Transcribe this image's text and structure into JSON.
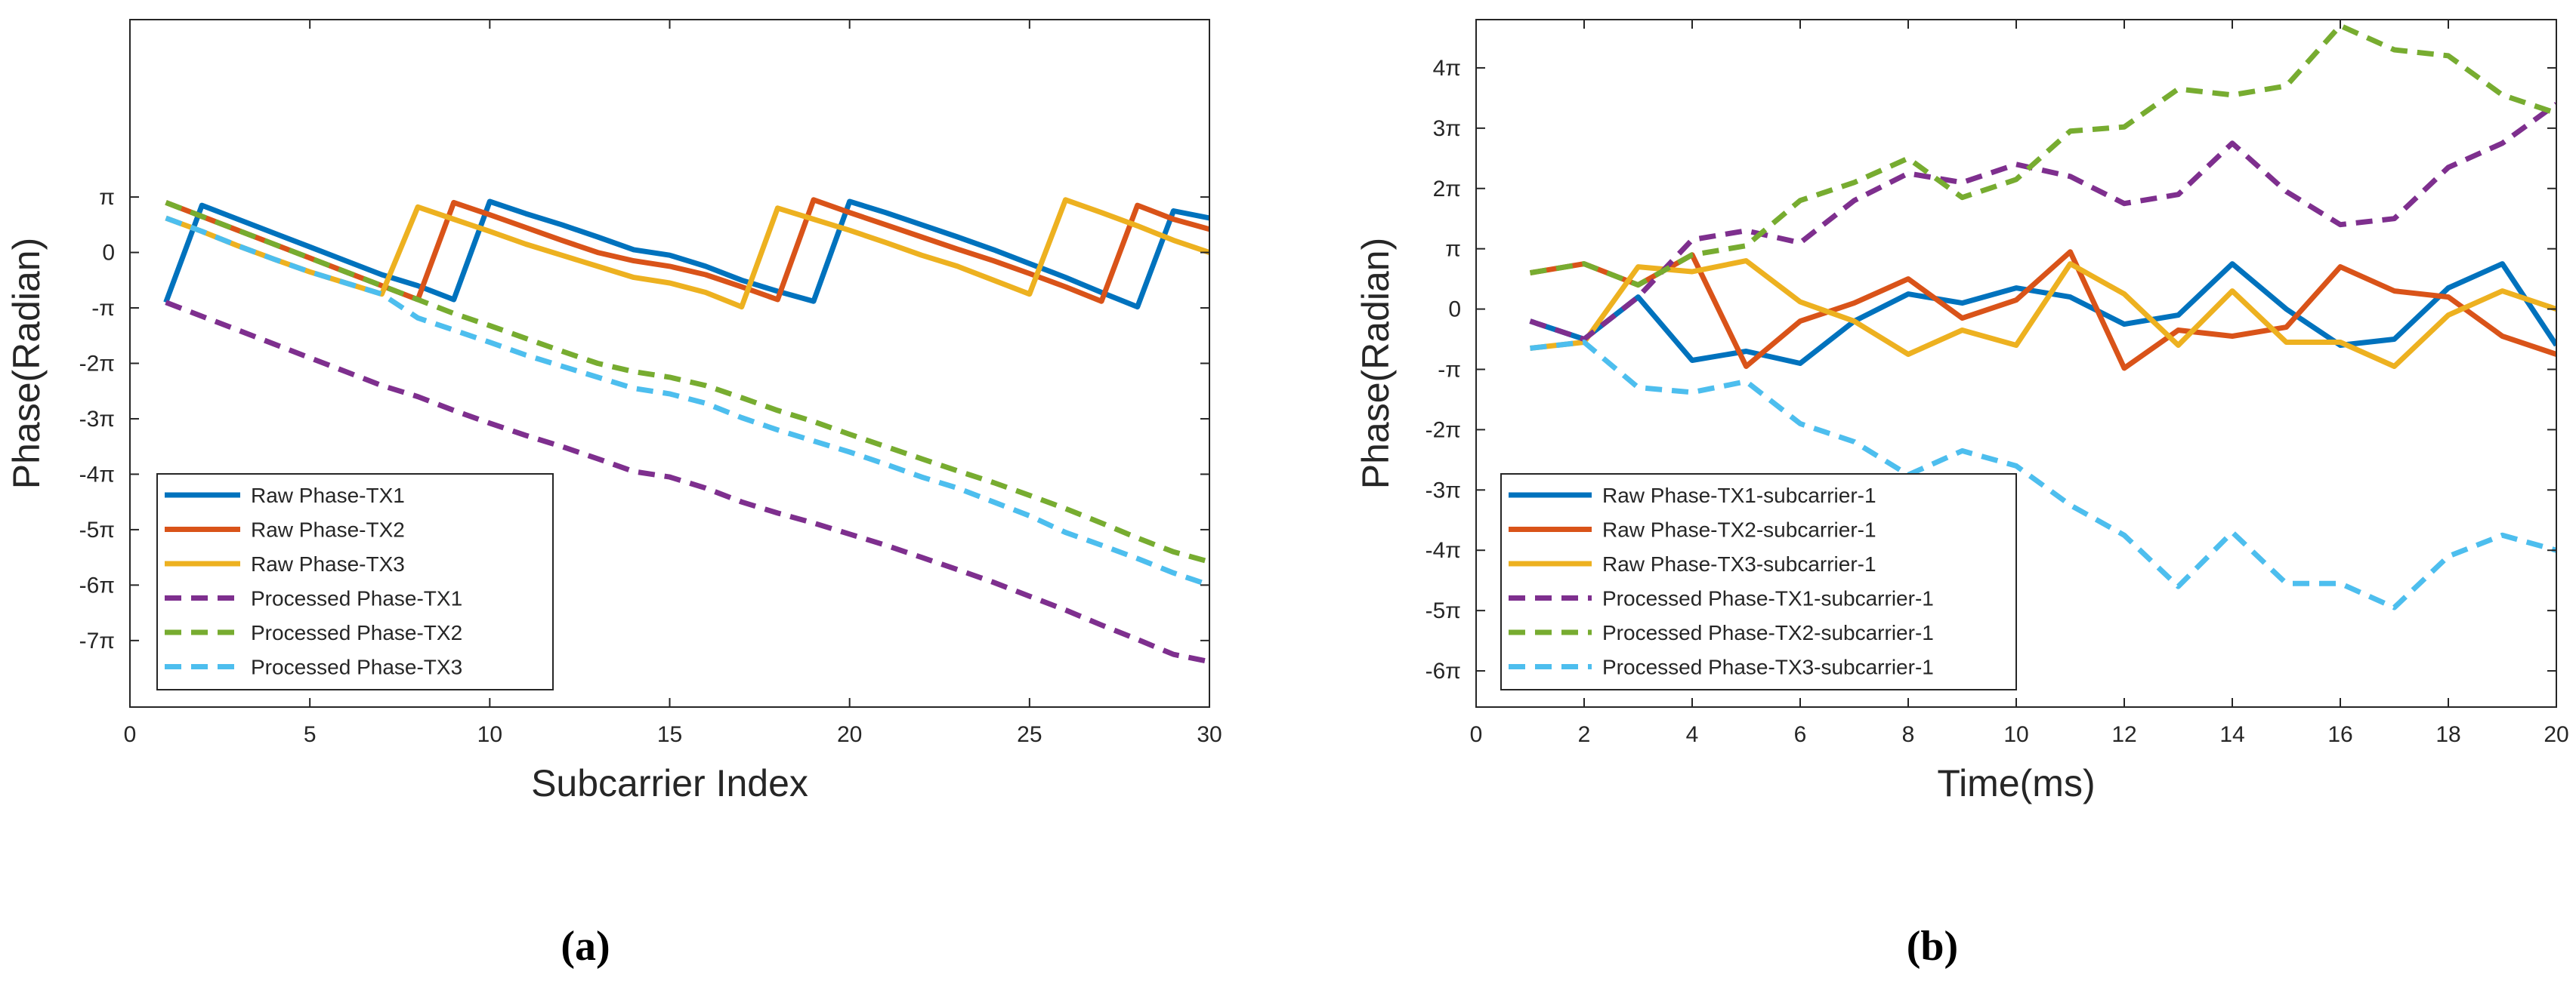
{
  "chart_data": [
    {
      "type": "line",
      "caption": "(a)",
      "xlabel": "Subcarrier Index",
      "ylabel": "Phase(Radian)",
      "xlim": [
        0,
        30
      ],
      "ylim": [
        -8.2,
        4.2
      ],
      "xticks": [
        0,
        5,
        10,
        15,
        20,
        25,
        30
      ],
      "xtick_labels": [
        "0",
        "5",
        "10",
        "15",
        "20",
        "25",
        "30"
      ],
      "yticks": [
        -7,
        -6,
        -5,
        -4,
        -3,
        -2,
        -1,
        0,
        1
      ],
      "ytick_labels": [
        "-7π",
        "-6π",
        "-5π",
        "-4π",
        "-3π",
        "-2π",
        "-π",
        "0",
        "π"
      ],
      "y_units": "multiples of π",
      "legend_position": "bottom-left",
      "series": [
        {
          "name": "Raw Phase-TX1",
          "color": "#0072BD",
          "dash": "solid",
          "x": [
            1,
            2,
            3,
            4,
            5,
            6,
            7,
            8,
            9,
            10,
            11,
            12,
            13,
            14,
            15,
            16,
            17,
            18,
            19,
            20,
            21,
            22,
            23,
            24,
            25,
            26,
            27,
            28,
            29,
            30
          ],
          "y": [
            -0.9,
            0.85,
            0.6,
            0.35,
            0.1,
            -0.15,
            -0.4,
            -0.6,
            -0.85,
            0.92,
            0.7,
            0.5,
            0.28,
            0.05,
            -0.05,
            -0.25,
            -0.5,
            -0.7,
            -0.88,
            0.92,
            0.72,
            0.5,
            0.28,
            0.05,
            -0.2,
            -0.45,
            -0.72,
            -0.98,
            0.75,
            0.62
          ]
        },
        {
          "name": "Raw Phase-TX2",
          "color": "#D95319",
          "dash": "solid",
          "x": [
            1,
            2,
            3,
            4,
            5,
            6,
            7,
            8,
            9,
            10,
            11,
            12,
            13,
            14,
            15,
            16,
            17,
            18,
            19,
            20,
            21,
            22,
            23,
            24,
            25,
            26,
            27,
            28,
            29,
            30
          ],
          "y": [
            0.9,
            0.65,
            0.4,
            0.15,
            -0.1,
            -0.35,
            -0.6,
            -0.85,
            0.9,
            0.68,
            0.45,
            0.22,
            0.0,
            -0.15,
            -0.25,
            -0.4,
            -0.62,
            -0.85,
            0.95,
            0.72,
            0.5,
            0.28,
            0.06,
            -0.15,
            -0.38,
            -0.62,
            -0.88,
            0.85,
            0.6,
            0.42
          ]
        },
        {
          "name": "Raw Phase-TX3",
          "color": "#EDB120",
          "dash": "solid",
          "x": [
            1,
            2,
            3,
            4,
            5,
            6,
            7,
            8,
            9,
            10,
            11,
            12,
            13,
            14,
            15,
            16,
            17,
            18,
            19,
            20,
            21,
            22,
            23,
            24,
            25,
            26,
            27,
            28,
            29,
            30
          ],
          "y": [
            0.62,
            0.38,
            0.12,
            -0.12,
            -0.35,
            -0.55,
            -0.75,
            0.82,
            0.6,
            0.38,
            0.15,
            -0.05,
            -0.25,
            -0.45,
            -0.55,
            -0.72,
            -0.98,
            0.8,
            0.6,
            0.4,
            0.18,
            -0.05,
            -0.25,
            -0.5,
            -0.75,
            0.95,
            0.72,
            0.48,
            0.22,
            0.0
          ]
        },
        {
          "name": "Processed Phase-TX1",
          "color": "#7E2F8E",
          "dash": "dashed",
          "x": [
            1,
            2,
            3,
            4,
            5,
            6,
            7,
            8,
            9,
            10,
            11,
            12,
            13,
            14,
            15,
            16,
            17,
            18,
            19,
            20,
            21,
            22,
            23,
            24,
            25,
            26,
            27,
            28,
            29,
            30
          ],
          "y": [
            -0.9,
            -1.15,
            -1.4,
            -1.65,
            -1.9,
            -2.15,
            -2.4,
            -2.6,
            -2.85,
            -3.08,
            -3.3,
            -3.5,
            -3.72,
            -3.95,
            -4.05,
            -4.25,
            -4.5,
            -4.7,
            -4.88,
            -5.08,
            -5.28,
            -5.5,
            -5.72,
            -5.95,
            -6.2,
            -6.45,
            -6.72,
            -6.98,
            -7.25,
            -7.38
          ]
        },
        {
          "name": "Processed Phase-TX2",
          "color": "#77AC30",
          "dash": "dashed",
          "x": [
            1,
            2,
            3,
            4,
            5,
            6,
            7,
            8,
            9,
            10,
            11,
            12,
            13,
            14,
            15,
            16,
            17,
            18,
            19,
            20,
            21,
            22,
            23,
            24,
            25,
            26,
            27,
            28,
            29,
            30
          ],
          "y": [
            0.9,
            0.65,
            0.4,
            0.15,
            -0.1,
            -0.35,
            -0.6,
            -0.85,
            -1.1,
            -1.32,
            -1.55,
            -1.78,
            -2.0,
            -2.15,
            -2.25,
            -2.4,
            -2.62,
            -2.85,
            -3.05,
            -3.28,
            -3.5,
            -3.72,
            -3.94,
            -4.15,
            -4.38,
            -4.62,
            -4.88,
            -5.15,
            -5.4,
            -5.58
          ]
        },
        {
          "name": "Processed Phase-TX3",
          "color": "#4DBEEE",
          "dash": "dashed",
          "x": [
            1,
            2,
            3,
            4,
            5,
            6,
            7,
            8,
            9,
            10,
            11,
            12,
            13,
            14,
            15,
            16,
            17,
            18,
            19,
            20,
            21,
            22,
            23,
            24,
            25,
            26,
            27,
            28,
            29,
            30
          ],
          "y": [
            0.62,
            0.38,
            0.12,
            -0.12,
            -0.35,
            -0.55,
            -0.75,
            -1.18,
            -1.4,
            -1.62,
            -1.85,
            -2.05,
            -2.25,
            -2.45,
            -2.55,
            -2.72,
            -2.98,
            -3.2,
            -3.4,
            -3.6,
            -3.82,
            -4.05,
            -4.25,
            -4.5,
            -4.75,
            -5.05,
            -5.28,
            -5.52,
            -5.78,
            -6.0
          ]
        }
      ]
    },
    {
      "type": "line",
      "caption": "(b)",
      "xlabel": "Time(ms)",
      "ylabel": "Phase(Radian)",
      "xlim": [
        0,
        20
      ],
      "ylim": [
        -6.6,
        4.8
      ],
      "xticks": [
        0,
        2,
        4,
        6,
        8,
        10,
        12,
        14,
        16,
        18,
        20
      ],
      "xtick_labels": [
        "0",
        "2",
        "4",
        "6",
        "8",
        "10",
        "12",
        "14",
        "16",
        "18",
        "20"
      ],
      "yticks": [
        -6,
        -5,
        -4,
        -3,
        -2,
        -1,
        0,
        1,
        2,
        3,
        4
      ],
      "ytick_labels": [
        "-6π",
        "-5π",
        "-4π",
        "-3π",
        "-2π",
        "-π",
        "0",
        "π",
        "2π",
        "3π",
        "4π"
      ],
      "y_units": "multiples of π",
      "legend_position": "bottom-left",
      "series": [
        {
          "name": "Raw Phase-TX1-subcarrier-1",
          "color": "#0072BD",
          "dash": "solid",
          "x": [
            1,
            2,
            3,
            4,
            5,
            6,
            7,
            8,
            9,
            10,
            11,
            12,
            13,
            14,
            15,
            16,
            17,
            18,
            19,
            20
          ],
          "y": [
            -0.2,
            -0.5,
            0.2,
            -0.85,
            -0.7,
            -0.9,
            -0.2,
            0.25,
            0.1,
            0.35,
            0.2,
            -0.25,
            -0.1,
            0.75,
            0.0,
            -0.6,
            -0.5,
            0.35,
            0.75,
            -0.6
          ]
        },
        {
          "name": "Raw Phase-TX2-subcarrier-1",
          "color": "#D95319",
          "dash": "solid",
          "x": [
            1,
            2,
            3,
            4,
            5,
            6,
            7,
            8,
            9,
            10,
            11,
            12,
            13,
            14,
            15,
            16,
            17,
            18,
            19,
            20
          ],
          "y": [
            0.6,
            0.75,
            0.4,
            0.9,
            -0.95,
            -0.2,
            0.1,
            0.5,
            -0.15,
            0.15,
            0.95,
            -0.98,
            -0.35,
            -0.45,
            -0.3,
            0.7,
            0.3,
            0.2,
            -0.45,
            -0.75
          ]
        },
        {
          "name": "Raw Phase-TX3-subcarrier-1",
          "color": "#EDB120",
          "dash": "solid",
          "x": [
            1,
            2,
            3,
            4,
            5,
            6,
            7,
            8,
            9,
            10,
            11,
            12,
            13,
            14,
            15,
            16,
            17,
            18,
            19,
            20
          ],
          "y": [
            -0.65,
            -0.55,
            0.7,
            0.62,
            0.8,
            0.12,
            -0.2,
            -0.75,
            -0.35,
            -0.6,
            0.75,
            0.25,
            -0.6,
            0.3,
            -0.55,
            -0.55,
            -0.95,
            -0.1,
            0.3,
            0.0
          ]
        },
        {
          "name": "Processed Phase-TX1-subcarrier-1",
          "color": "#7E2F8E",
          "dash": "dashed",
          "x": [
            1,
            2,
            3,
            4,
            5,
            6,
            7,
            8,
            9,
            10,
            11,
            12,
            13,
            14,
            15,
            16,
            17,
            18,
            19,
            20
          ],
          "y": [
            -0.2,
            -0.5,
            0.2,
            1.15,
            1.3,
            1.1,
            1.8,
            2.25,
            2.1,
            2.4,
            2.2,
            1.75,
            1.9,
            2.75,
            1.95,
            1.4,
            1.5,
            2.35,
            2.75,
            3.4
          ]
        },
        {
          "name": "Processed Phase-TX2-subcarrier-1",
          "color": "#77AC30",
          "dash": "dashed",
          "x": [
            1,
            2,
            3,
            4,
            5,
            6,
            7,
            8,
            9,
            10,
            11,
            12,
            13,
            14,
            15,
            16,
            17,
            18,
            19,
            20
          ],
          "y": [
            0.6,
            0.75,
            0.4,
            0.9,
            1.05,
            1.8,
            2.1,
            2.5,
            1.85,
            2.15,
            2.95,
            3.02,
            3.65,
            3.55,
            3.7,
            4.7,
            4.3,
            4.2,
            3.55,
            3.25
          ]
        },
        {
          "name": "Processed Phase-TX3-subcarrier-1",
          "color": "#4DBEEE",
          "dash": "dashed",
          "x": [
            1,
            2,
            3,
            4,
            5,
            6,
            7,
            8,
            9,
            10,
            11,
            12,
            13,
            14,
            15,
            16,
            17,
            18,
            19,
            20
          ],
          "y": [
            -0.65,
            -0.55,
            -1.3,
            -1.38,
            -1.2,
            -1.9,
            -2.2,
            -2.75,
            -2.35,
            -2.6,
            -3.25,
            -3.75,
            -4.6,
            -3.7,
            -4.55,
            -4.55,
            -4.95,
            -4.1,
            -3.75,
            -4.0
          ]
        }
      ]
    }
  ]
}
